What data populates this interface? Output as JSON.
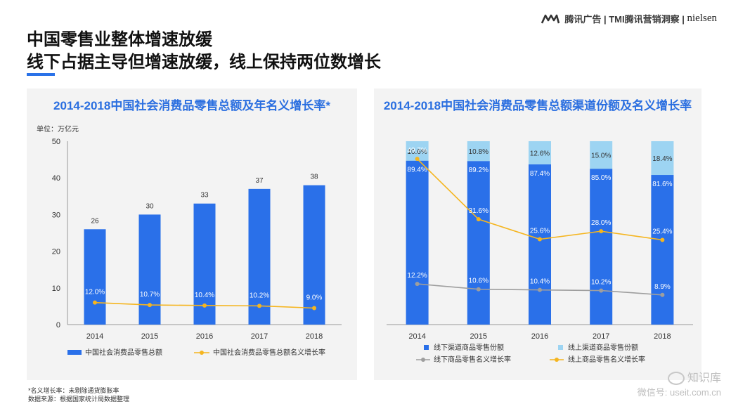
{
  "header": {
    "brand_text": "腾讯广告 | TMI腾讯营销洞察 |",
    "brand_nielsen": "nielsen",
    "title_line1": "中国零售业整体增速放缓",
    "title_line2": "线下占据主导但增速放缓，线上保持两位数增长"
  },
  "footer": {
    "note1": "*名义增长率：未剔除通货膨胀率",
    "note2": "数据来源：根据国家统计局数据整理",
    "watermark_top": "知识库",
    "watermark_bottom": "微信号: useit.com.cn"
  },
  "colors": {
    "bar_blue": "#2a70e9",
    "light_blue": "#9dd4f2",
    "orange": "#f5b51f",
    "gray": "#9e9e9e",
    "title_blue": "#2b6fe0"
  },
  "chart_data": [
    {
      "type": "bar",
      "title": "2014-2018中国社会消费品零售总额及年名义增长率*",
      "unit_label": "单位：万亿元",
      "categories": [
        "2014",
        "2015",
        "2016",
        "2017",
        "2018"
      ],
      "ylim": [
        0,
        50
      ],
      "yticks": [
        "0",
        "10",
        "20",
        "30",
        "40",
        "50"
      ],
      "bar_series": {
        "name": "中国社会消费品零售总额",
        "values": [
          26,
          30,
          33,
          37,
          38
        ],
        "labels": [
          "26",
          "30",
          "33",
          "37",
          "38"
        ]
      },
      "line_series": {
        "name": "中国社会消费品零售总额名义增长率",
        "values": [
          12.0,
          10.7,
          10.4,
          10.2,
          9.0
        ],
        "labels": [
          "12.0%",
          "10.7%",
          "10.4%",
          "10.2%",
          "9.0%"
        ]
      },
      "grid": false,
      "legend_position": "bottom"
    },
    {
      "type": "bar",
      "title": "2014-2018中国社会消费品零售总额渠道份额及名义增长率",
      "categories": [
        "2014",
        "2015",
        "2016",
        "2017",
        "2018"
      ],
      "stacked_100": true,
      "series": [
        {
          "name": "线下渠道商品零售份额",
          "values": [
            89.4,
            89.2,
            87.4,
            85.0,
            81.6
          ],
          "labels": [
            "89.4%",
            "89.2%",
            "87.4%",
            "85.0%",
            "81.6%"
          ]
        },
        {
          "name": "线上渠道商品零售份额",
          "values": [
            10.6,
            10.8,
            12.6,
            15.0,
            18.4
          ],
          "labels": [
            "10.6%",
            "10.8%",
            "12.6%",
            "15.0%",
            "18.4%"
          ]
        }
      ],
      "lines": [
        {
          "name": "线下商品零售名义增长率",
          "values": [
            12.2,
            10.6,
            10.4,
            10.2,
            8.9
          ],
          "labels": [
            "12.2%",
            "10.6%",
            "10.4%",
            "10.2%",
            "8.9%"
          ]
        },
        {
          "name": "线上商品零售名义增长率",
          "values": [
            49.7,
            31.6,
            25.6,
            28.0,
            25.4
          ],
          "labels": [
            "49.7%",
            "31.6%",
            "25.6%",
            "28.0%",
            "25.4%"
          ]
        }
      ],
      "grid": false,
      "legend_position": "bottom"
    }
  ]
}
